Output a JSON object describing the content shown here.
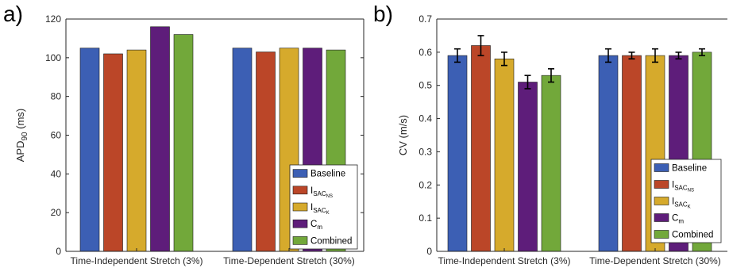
{
  "figure": {
    "panel_letters": [
      "a)",
      "b)"
    ]
  },
  "legend": {
    "entries": [
      {
        "label": "Baseline",
        "main": "Baseline",
        "sub": "",
        "subsub": ""
      },
      {
        "label": "I_SAC_NS",
        "main": "I",
        "sub": "SAC",
        "subsub": "NS"
      },
      {
        "label": "I_SAC_K",
        "main": "I",
        "sub": "SAC",
        "subsub": "K"
      },
      {
        "label": "C_m",
        "main": "C",
        "sub": "m",
        "subsub": ""
      },
      {
        "label": "Combined",
        "main": "Combined",
        "sub": "",
        "subsub": ""
      }
    ]
  },
  "colors": {
    "Baseline": "#3c5fb4",
    "I_SAC_NS": "#bb4628",
    "I_SAC_K": "#d6aa2c",
    "C_m": "#5e1d7a",
    "Combined": "#72a83a"
  },
  "chart_data": [
    {
      "type": "bar",
      "panel": "a)",
      "categories": [
        "Time-Independent Stretch (3%)",
        "Time-Dependent Stretch (30%)"
      ],
      "ylabel": "APD",
      "ylabel_sub": "90",
      "ylabel_suffix": " (ms)",
      "ylim": [
        0,
        120
      ],
      "yticks": [
        0,
        20,
        40,
        60,
        80,
        100,
        120
      ],
      "legend_position": "lower-right",
      "grid": false,
      "series": [
        {
          "name": "Baseline",
          "values": [
            105,
            105
          ]
        },
        {
          "name": "I_SAC_NS",
          "values": [
            102,
            103
          ]
        },
        {
          "name": "I_SAC_K",
          "values": [
            104,
            105
          ]
        },
        {
          "name": "C_m",
          "values": [
            116,
            105
          ]
        },
        {
          "name": "Combined",
          "values": [
            112,
            104
          ]
        }
      ]
    },
    {
      "type": "bar",
      "panel": "b)",
      "categories": [
        "Time-Independent Stretch (3%)",
        "Time-Dependent Stretch (30%)"
      ],
      "ylabel": "CV",
      "ylabel_sub": "",
      "ylabel_suffix": " (m/s)",
      "ylim": [
        0,
        0.7
      ],
      "yticks": [
        0,
        0.1,
        0.2,
        0.3,
        0.4,
        0.5,
        0.6,
        0.7
      ],
      "legend_position": "lower-right",
      "grid": false,
      "series": [
        {
          "name": "Baseline",
          "values": [
            0.59,
            0.59
          ],
          "errors": [
            0.02,
            0.02
          ]
        },
        {
          "name": "I_SAC_NS",
          "values": [
            0.62,
            0.59
          ],
          "errors": [
            0.03,
            0.01
          ]
        },
        {
          "name": "I_SAC_K",
          "values": [
            0.58,
            0.59
          ],
          "errors": [
            0.02,
            0.02
          ]
        },
        {
          "name": "C_m",
          "values": [
            0.51,
            0.59
          ],
          "errors": [
            0.02,
            0.01
          ]
        },
        {
          "name": "Combined",
          "values": [
            0.53,
            0.6
          ],
          "errors": [
            0.02,
            0.01
          ]
        }
      ]
    }
  ]
}
